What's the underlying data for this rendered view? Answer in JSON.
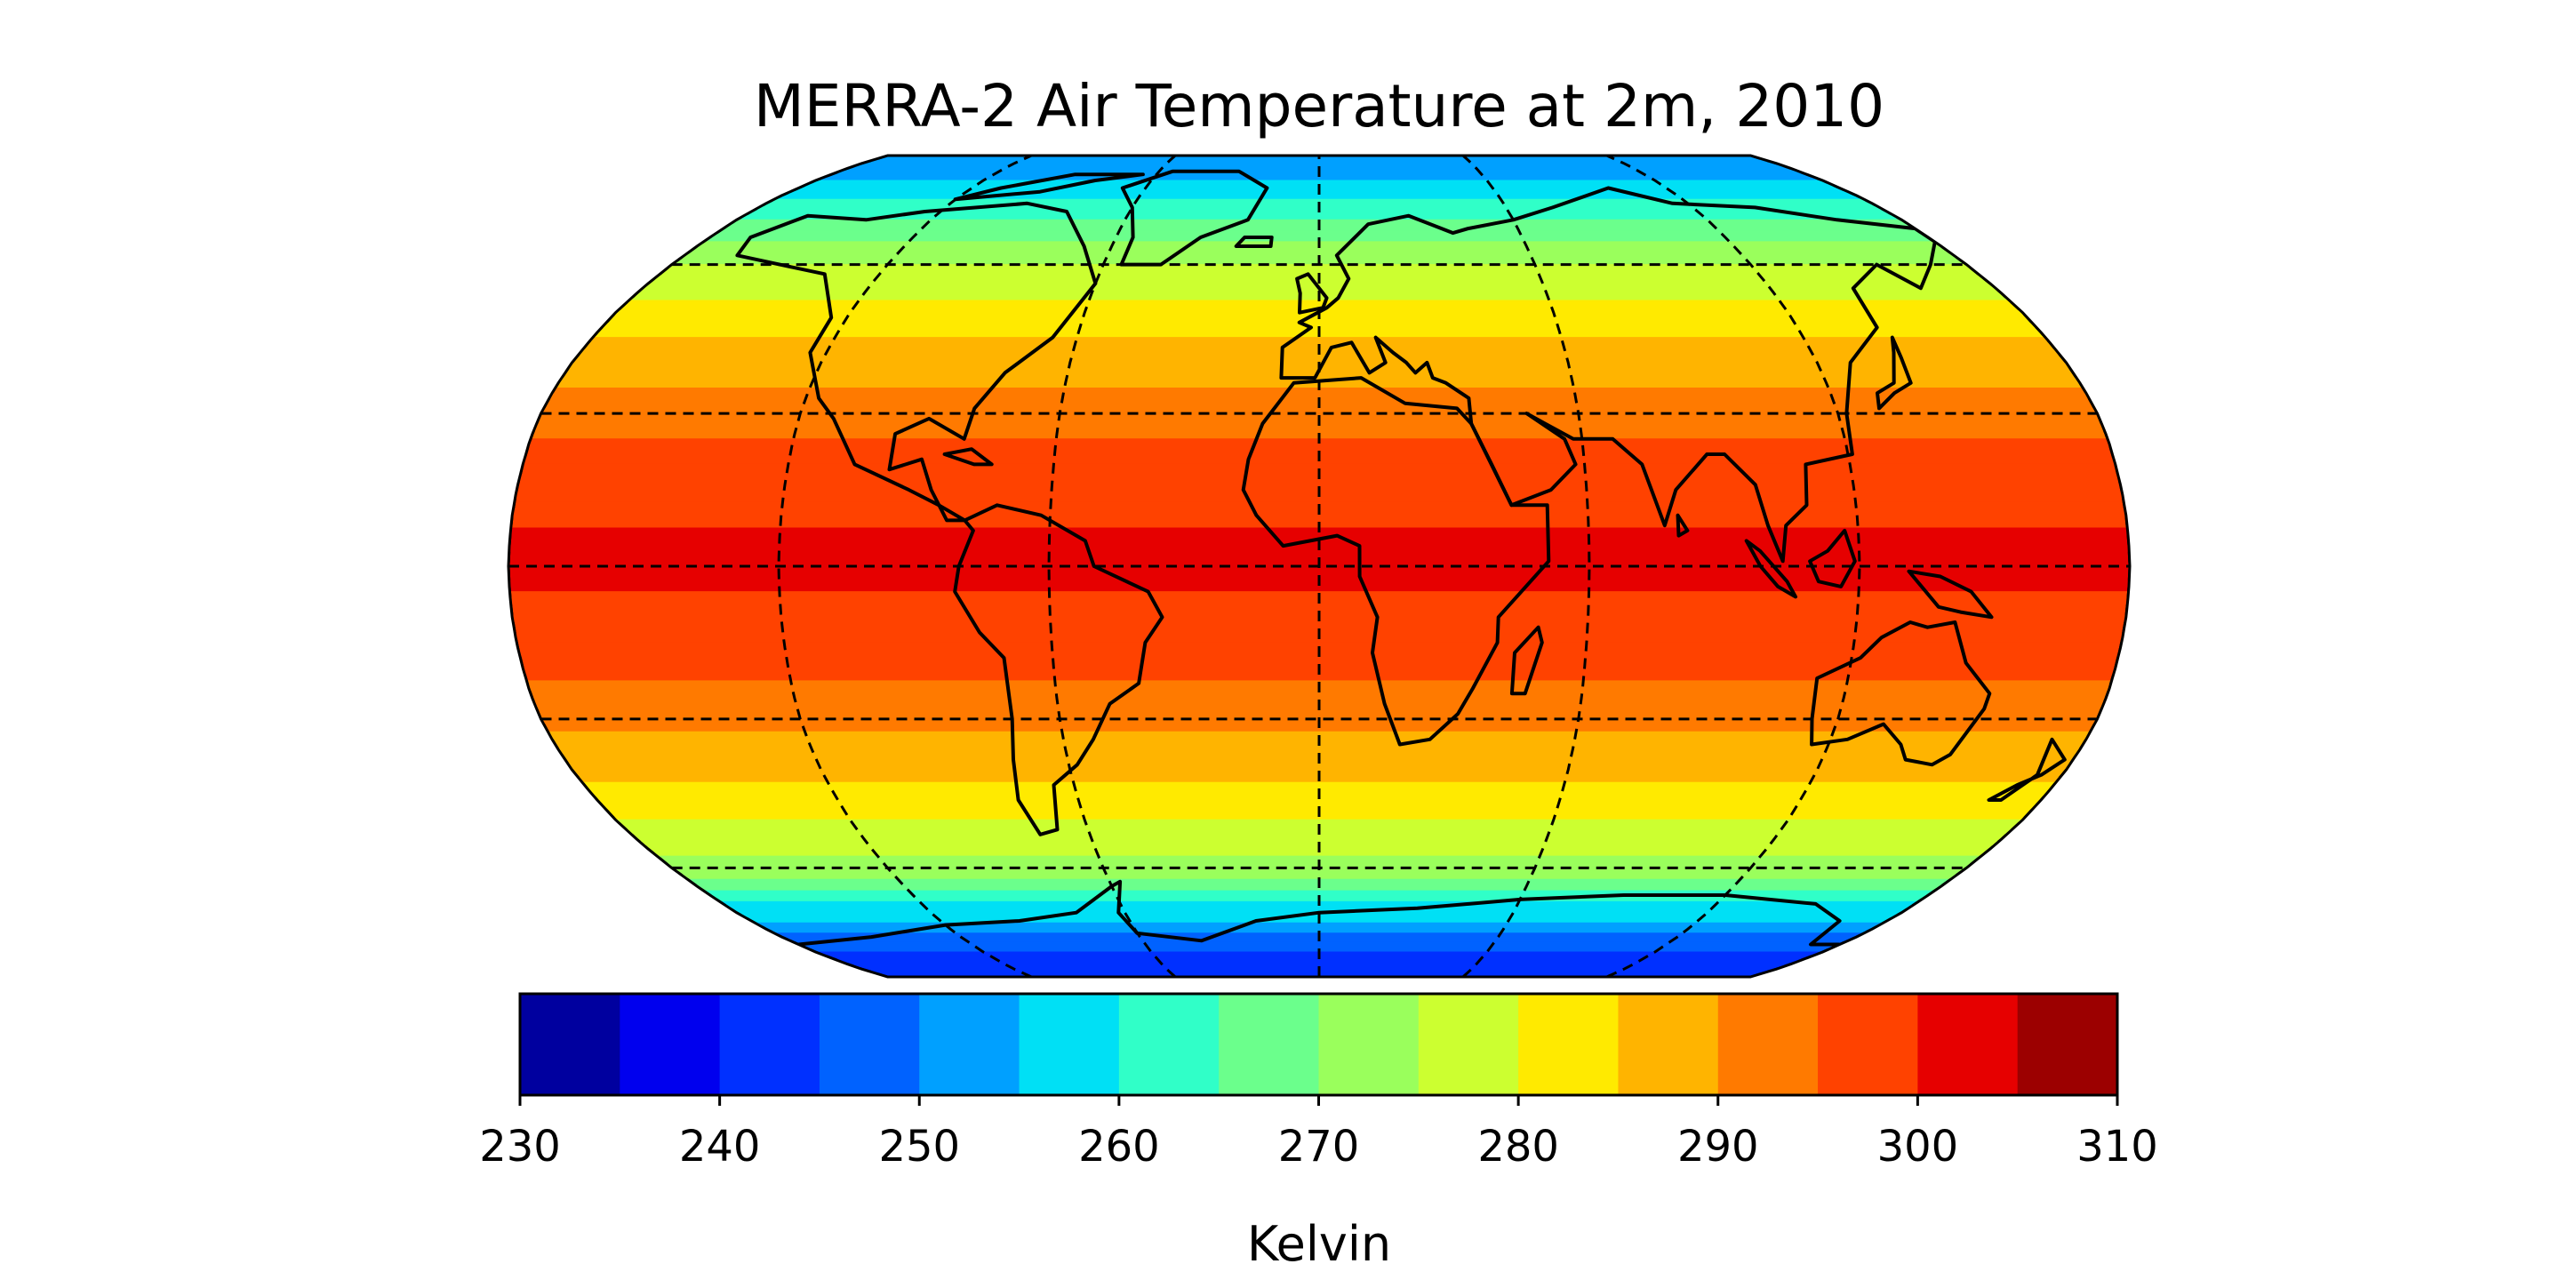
{
  "chart_data": {
    "type": "heatmap",
    "title": "MERRA-2 Air Temperature at 2m, 2010",
    "projection": "robinson",
    "gridlines": true,
    "coastlines": true,
    "colormap": "jet",
    "colorbar": {
      "label": "Kelvin",
      "orientation": "horizontal",
      "placement": "bottom",
      "levels": [
        230,
        235,
        240,
        245,
        250,
        255,
        260,
        265,
        270,
        275,
        280,
        285,
        290,
        295,
        300,
        305,
        310
      ],
      "ticks": [
        230,
        240,
        250,
        260,
        270,
        280,
        290,
        300,
        310
      ],
      "tick_labels": [
        "230",
        "240",
        "250",
        "260",
        "270",
        "280",
        "290",
        "300",
        "310"
      ],
      "colors": [
        "#00009f",
        "#0000ee",
        "#0030ff",
        "#0062ff",
        "#00a0ff",
        "#00e0f5",
        "#30ffc8",
        "#6bff8c",
        "#9aff5c",
        "#ccff30",
        "#ffea00",
        "#ffb400",
        "#ff7a00",
        "#ff4200",
        "#e60000",
        "#9c0000"
      ]
    },
    "zonal_mean_kelvin": [
      {
        "lat": 85,
        "value": 250
      },
      {
        "lat": 75,
        "value": 260
      },
      {
        "lat": 60,
        "value": 276
      },
      {
        "lat": 45,
        "value": 285
      },
      {
        "lat": 30,
        "value": 293
      },
      {
        "lat": 15,
        "value": 299
      },
      {
        "lat": 0,
        "value": 301
      },
      {
        "lat": -15,
        "value": 298
      },
      {
        "lat": -30,
        "value": 291
      },
      {
        "lat": -45,
        "value": 283
      },
      {
        "lat": -60,
        "value": 273
      },
      {
        "lat": -75,
        "value": 250
      },
      {
        "lat": -85,
        "value": 240
      }
    ]
  }
}
